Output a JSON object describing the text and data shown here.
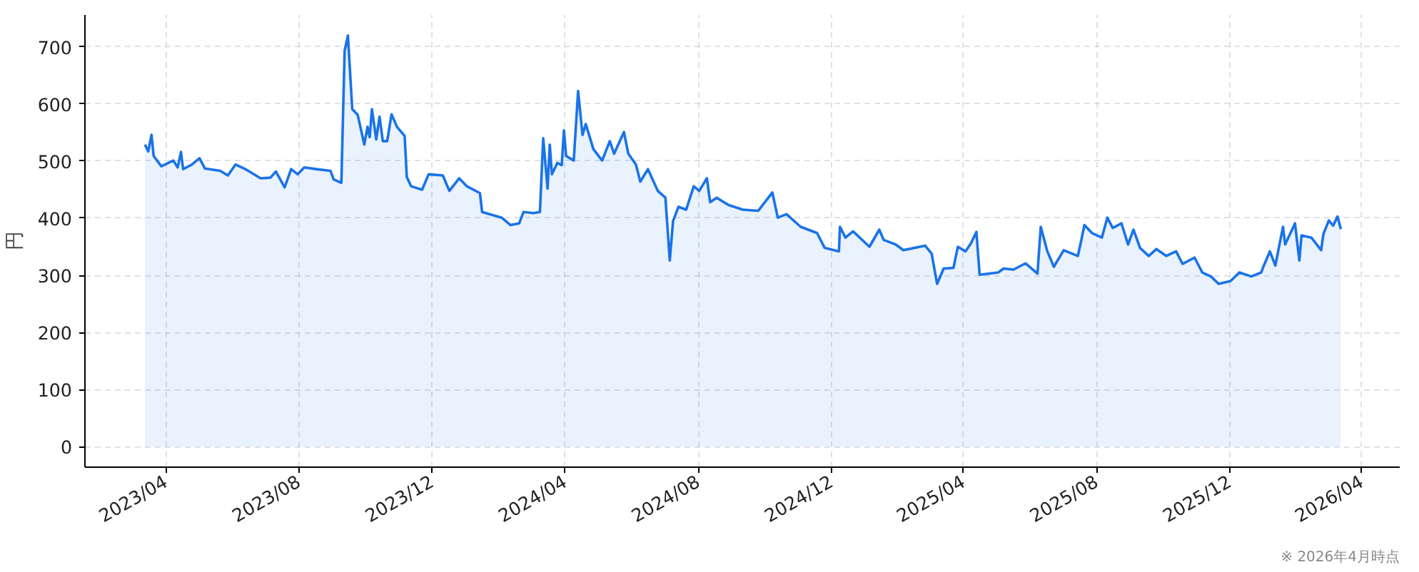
{
  "chart_data": {
    "type": "area",
    "ylabel": "円",
    "annotations": [
      "※ 2026年4月時点"
    ],
    "x": [
      "2023-03-13",
      "2023-03-16",
      "2023-03-19",
      "2023-03-21",
      "2023-03-28",
      "2023-04-08",
      "2023-04-12",
      "2023-04-15",
      "2023-04-17",
      "2023-04-25",
      "2023-05-02",
      "2023-05-07",
      "2023-05-21",
      "2023-05-28",
      "2023-06-04",
      "2023-06-14",
      "2023-06-27",
      "2023-07-06",
      "2023-07-11",
      "2023-07-19",
      "2023-07-25",
      "2023-07-31",
      "2023-08-06",
      "2023-08-17",
      "2023-08-30",
      "2023-09-02",
      "2023-09-09",
      "2023-09-12",
      "2023-09-15",
      "2023-09-19",
      "2023-09-24",
      "2023-09-30",
      "2023-10-03",
      "2023-10-05",
      "2023-10-07",
      "2023-10-11",
      "2023-10-14",
      "2023-10-17",
      "2023-10-21",
      "2023-10-25",
      "2023-10-30",
      "2023-11-06",
      "2023-11-08",
      "2023-11-12",
      "2023-11-22",
      "2023-11-28",
      "2023-12-11",
      "2023-12-17",
      "2023-12-26",
      "2024-01-02",
      "2024-01-14",
      "2024-01-16",
      "2024-02-03",
      "2024-02-11",
      "2024-02-19",
      "2024-02-23",
      "2024-03-03",
      "2024-03-09",
      "2024-03-12",
      "2024-03-16",
      "2024-03-18",
      "2024-03-20",
      "2024-03-25",
      "2024-03-29",
      "2024-03-31",
      "2024-04-02",
      "2024-04-09",
      "2024-04-13",
      "2024-04-17",
      "2024-04-20",
      "2024-04-27",
      "2024-05-05",
      "2024-05-12",
      "2024-05-16",
      "2024-05-25",
      "2024-05-29",
      "2024-06-05",
      "2024-06-09",
      "2024-06-16",
      "2024-06-25",
      "2024-07-02",
      "2024-07-06",
      "2024-07-09",
      "2024-07-14",
      "2024-07-21",
      "2024-07-28",
      "2024-08-02",
      "2024-08-09",
      "2024-08-12",
      "2024-08-18",
      "2024-08-29",
      "2024-09-11",
      "2024-09-25",
      "2024-10-08",
      "2024-10-13",
      "2024-10-21",
      "2024-11-03",
      "2024-11-18",
      "2024-11-25",
      "2024-12-08",
      "2024-12-09",
      "2024-12-14",
      "2024-12-21",
      "2025-01-05",
      "2025-01-14",
      "2025-01-18",
      "2025-01-29",
      "2025-02-05",
      "2025-02-25",
      "2025-03-03",
      "2025-03-08",
      "2025-03-14",
      "2025-03-23",
      "2025-03-27",
      "2025-04-03",
      "2025-04-08",
      "2025-04-13",
      "2025-04-16",
      "2025-05-03",
      "2025-05-08",
      "2025-05-17",
      "2025-05-28",
      "2025-06-08",
      "2025-06-11",
      "2025-06-17",
      "2025-06-23",
      "2025-07-02",
      "2025-07-15",
      "2025-07-18",
      "2025-07-21",
      "2025-07-28",
      "2025-08-06",
      "2025-08-11",
      "2025-08-16",
      "2025-08-24",
      "2025-08-30",
      "2025-09-04",
      "2025-09-10",
      "2025-09-18",
      "2025-09-25",
      "2025-10-04",
      "2025-10-13",
      "2025-10-19",
      "2025-10-30",
      "2025-11-06",
      "2025-11-14",
      "2025-11-21",
      "2025-12-02",
      "2025-12-10",
      "2025-12-21",
      "2025-12-30",
      "2026-01-01",
      "2026-01-07",
      "2026-01-12",
      "2026-01-19",
      "2026-01-21",
      "2026-01-30",
      "2026-02-03",
      "2026-02-05",
      "2026-02-14",
      "2026-02-23",
      "2026-02-25",
      "2026-03-02",
      "2026-03-06",
      "2026-03-10",
      "2026-03-13"
    ],
    "series": [
      {
        "color": "#1a73e8",
        "values": [
          529,
          517,
          546,
          509,
          491,
          501,
          489,
          516,
          486,
          494,
          505,
          487,
          483,
          475,
          494,
          485,
          470,
          471,
          482,
          454,
          486,
          477,
          489,
          486,
          483,
          468,
          462,
          693,
          720,
          591,
          581,
          529,
          560,
          542,
          591,
          538,
          578,
          535,
          535,
          582,
          560,
          544,
          472,
          456,
          450,
          477,
          475,
          448,
          470,
          456,
          444,
          411,
          401,
          388,
          391,
          411,
          409,
          411,
          540,
          452,
          529,
          477,
          497,
          493,
          554,
          509,
          501,
          623,
          546,
          565,
          521,
          501,
          535,
          513,
          551,
          513,
          494,
          464,
          486,
          448,
          436,
          326,
          395,
          420,
          415,
          456,
          448,
          470,
          428,
          436,
          423,
          415,
          413,
          445,
          401,
          407,
          385,
          374,
          348,
          342,
          385,
          366,
          377,
          350,
          380,
          362,
          354,
          344,
          352,
          338,
          285,
          312,
          313,
          350,
          342,
          356,
          376,
          301,
          305,
          312,
          310,
          321,
          303,
          385,
          342,
          315,
          344,
          334,
          360,
          388,
          374,
          366,
          401,
          383,
          391,
          354,
          380,
          348,
          334,
          346,
          334,
          342,
          320,
          331,
          305,
          298,
          285,
          290,
          305,
          298,
          305,
          315,
          342,
          317,
          385,
          354,
          391,
          326,
          370,
          366,
          344,
          372,
          396,
          387,
          403,
          381
        ]
      }
    ],
    "xlim": [
      "2023-01-17",
      "2026-05-06"
    ],
    "xticks": [
      {
        "value": "2023-04",
        "label": "2023/04"
      },
      {
        "value": "2023-08",
        "label": "2023/08"
      },
      {
        "value": "2023-12",
        "label": "2023/12"
      },
      {
        "value": "2024-04",
        "label": "2024/04"
      },
      {
        "value": "2024-08",
        "label": "2024/08"
      },
      {
        "value": "2024-12",
        "label": "2024/12"
      },
      {
        "value": "2025-04",
        "label": "2025/04"
      },
      {
        "value": "2025-08",
        "label": "2025/08"
      },
      {
        "value": "2025-12",
        "label": "2025/12"
      },
      {
        "value": "2026-04",
        "label": "2026/04"
      }
    ],
    "ylim": [
      -36,
      756
    ],
    "yticks": [
      0,
      100,
      200,
      300,
      400,
      500,
      600,
      700
    ],
    "grid": true,
    "line_style": "solid"
  }
}
